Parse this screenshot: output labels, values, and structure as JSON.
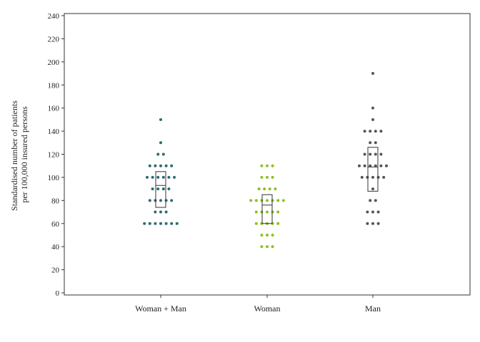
{
  "chart_data": {
    "type": "scatter",
    "subtype": "dot-plot-with-boxes",
    "ylabel_lines": [
      "Standardised number of patients",
      "per 100,000 insured persons"
    ],
    "ylim": [
      0,
      240
    ],
    "yticks": [
      0,
      20,
      40,
      60,
      80,
      100,
      120,
      140,
      160,
      180,
      200,
      220,
      240
    ],
    "grid": false,
    "categories": [
      "Woman + Man",
      "Woman",
      "Man"
    ],
    "series": [
      {
        "category": "Woman + Man",
        "color": "#2e6b70",
        "box": {
          "q1": 74,
          "median": 93,
          "q3": 105
        },
        "points": [
          150,
          130,
          120,
          120,
          110,
          110,
          110,
          110,
          110,
          100,
          100,
          100,
          100,
          100,
          100,
          90,
          90,
          90,
          90,
          80,
          80,
          80,
          80,
          80,
          70,
          70,
          70,
          60,
          60,
          60,
          60,
          60,
          60,
          60
        ]
      },
      {
        "category": "Woman",
        "color": "#8cc21c",
        "box": {
          "q1": 60,
          "median": 76,
          "q3": 85
        },
        "points": [
          110,
          110,
          110,
          100,
          100,
          100,
          90,
          90,
          90,
          90,
          80,
          80,
          80,
          80,
          80,
          80,
          80,
          70,
          70,
          70,
          70,
          70,
          60,
          60,
          60,
          60,
          60,
          50,
          50,
          50,
          40,
          40,
          40
        ]
      },
      {
        "category": "Man",
        "color": "#555555",
        "box": {
          "q1": 88,
          "median": 109,
          "q3": 126
        },
        "points": [
          190,
          160,
          150,
          140,
          140,
          140,
          140,
          130,
          130,
          120,
          120,
          120,
          120,
          110,
          110,
          110,
          110,
          110,
          110,
          100,
          100,
          100,
          100,
          100,
          90,
          80,
          80,
          70,
          70,
          70,
          60,
          60,
          60
        ]
      }
    ]
  }
}
